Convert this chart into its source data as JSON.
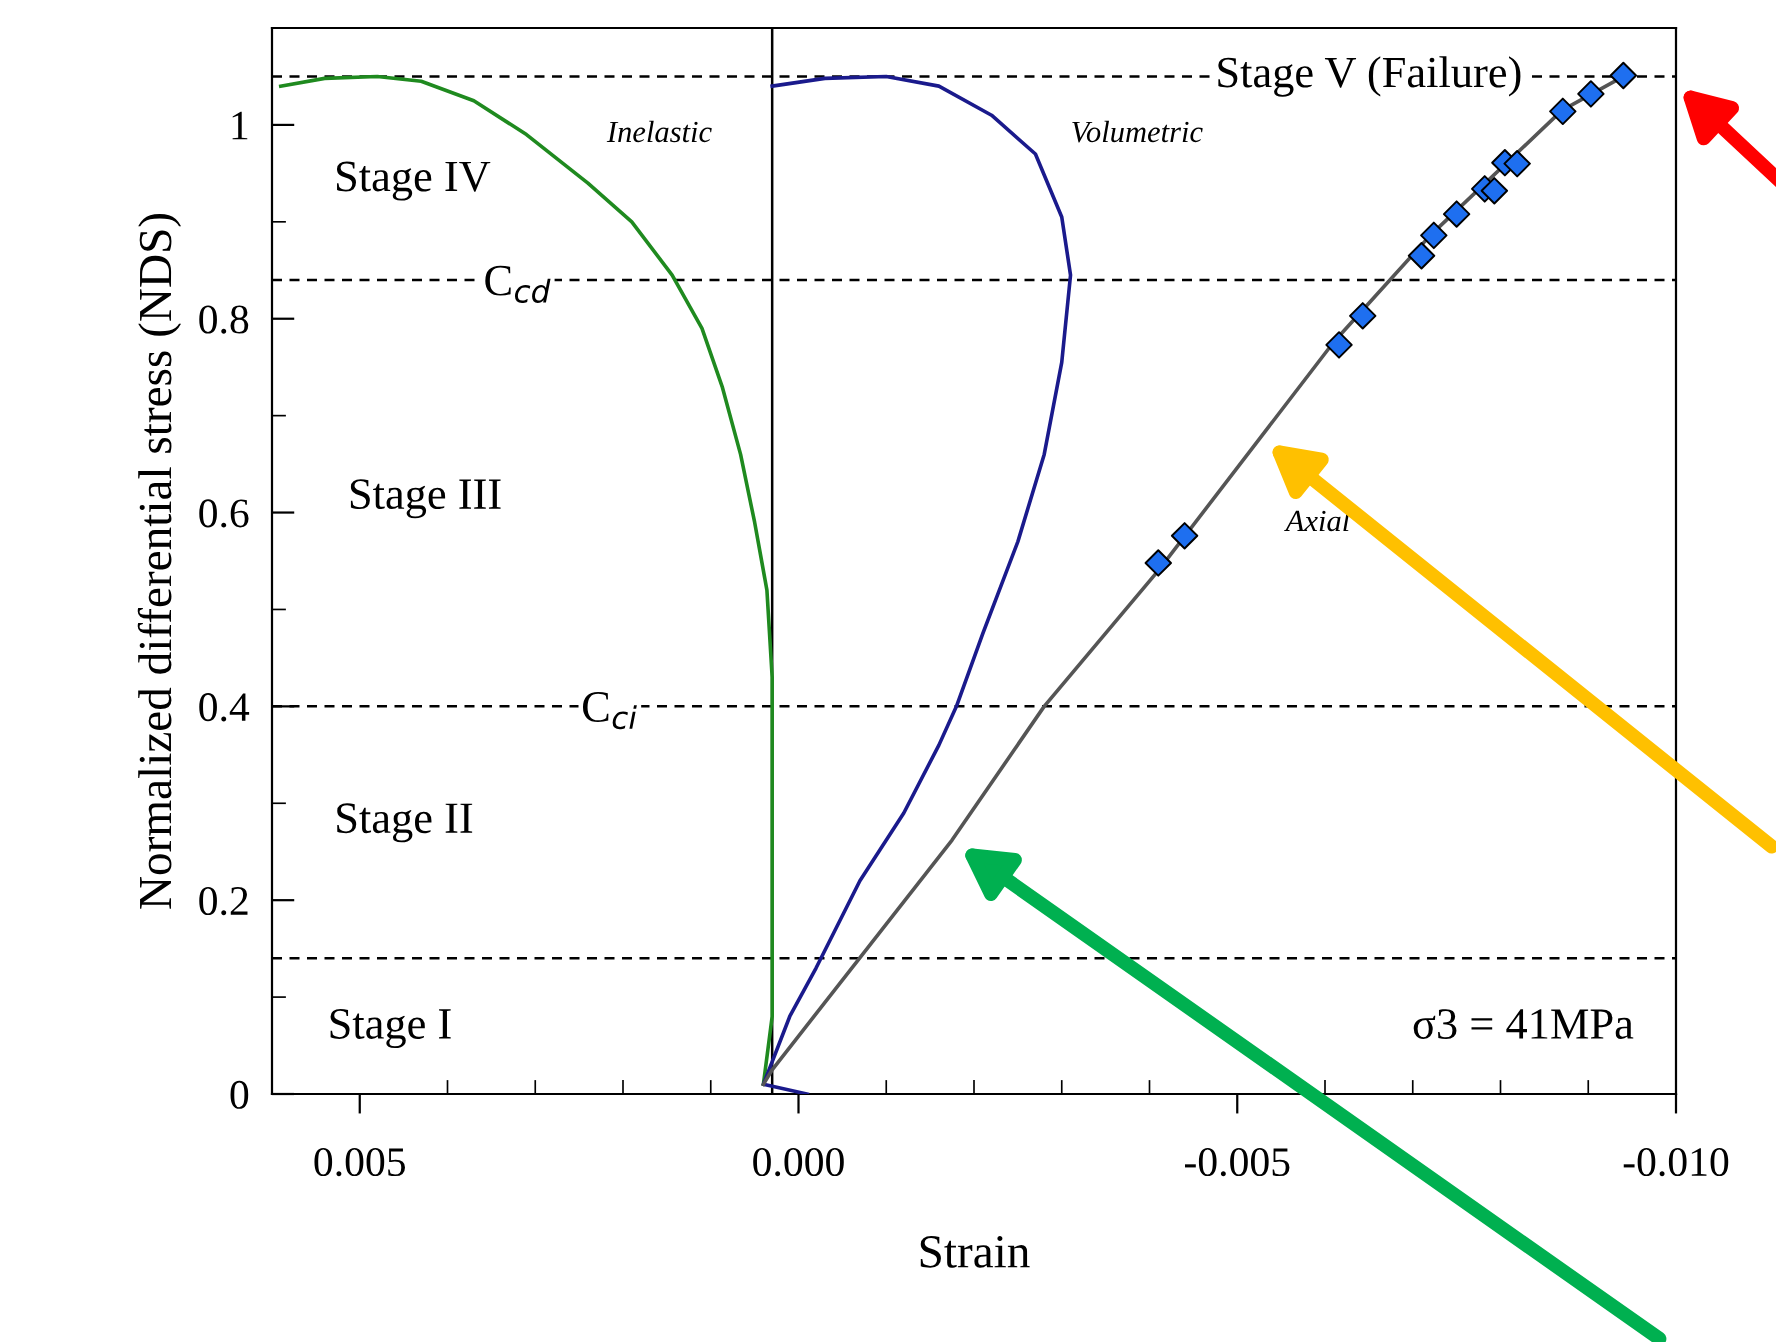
{
  "chart_data": {
    "type": "line",
    "xlabel": "Strain",
    "ylabel": "Normalized differential stress (NDS)",
    "xlim": [
      0.006,
      -0.01
    ],
    "xticks": [
      {
        "value": 0.006,
        "label": null
      },
      0.005,
      {
        "value": 0.004,
        "label": null
      },
      {
        "value": 0.003,
        "label": null
      },
      {
        "value": 0.002,
        "label": null
      },
      {
        "value": 0.001,
        "label": null
      },
      {
        "value": 0.0,
        "label": "0.000"
      },
      {
        "value": -0.001,
        "label": null
      },
      {
        "value": -0.002,
        "label": null
      },
      {
        "value": -0.003,
        "label": null
      },
      {
        "value": -0.004,
        "label": null
      },
      {
        "value": -0.005,
        "label": "-0.005"
      },
      {
        "value": -0.006,
        "label": null
      },
      {
        "value": -0.007,
        "label": null
      },
      {
        "value": -0.008,
        "label": null
      },
      {
        "value": -0.009,
        "label": null
      },
      {
        "value": -0.01,
        "label": "-0.010"
      }
    ],
    "ylim": [
      0,
      1.1
    ],
    "yticks": [
      0,
      {
        "value": 0.1,
        "label": null
      },
      0.2,
      {
        "value": 0.3,
        "label": null
      },
      0.4,
      {
        "value": 0.5,
        "label": null
      },
      0.6,
      {
        "value": 0.7,
        "label": null
      },
      0.8,
      {
        "value": 0.9,
        "label": null
      },
      1,
      {
        "value": 1.1,
        "label": null
      }
    ],
    "grid": false,
    "legend": false,
    "series": [
      {
        "color": "#1f8a1f",
        "x": [
          0.0004,
          0.0003,
          0.0003,
          0.0003,
          0.0003,
          0.00036,
          0.0005,
          0.00066,
          0.00087,
          0.0011,
          0.00144,
          0.0019,
          0.0024,
          0.0031,
          0.0037,
          0.0043,
          0.0048,
          0.0054,
          0.0059
        ],
        "values": [
          0.01,
          0.08,
          0.14,
          0.33,
          0.43,
          0.52,
          0.59,
          0.66,
          0.73,
          0.79,
          0.845,
          0.9,
          0.94,
          0.99,
          1.025,
          1.045,
          1.05,
          1.048,
          1.04
        ]
      },
      {
        "color": "#1a1a8c",
        "x": [
          -0.0001,
          0.0004,
          0.0001,
          -0.0002,
          -0.0007,
          -0.0012,
          -0.0016,
          -0.0018,
          -0.0021,
          -0.0025,
          -0.0028,
          -0.003,
          -0.0031,
          -0.003,
          -0.0027,
          -0.0022,
          -0.0016,
          -0.001,
          -0.0003,
          0.0003
        ],
        "values": [
          0.0,
          0.01,
          0.08,
          0.13,
          0.22,
          0.29,
          0.36,
          0.4,
          0.475,
          0.57,
          0.66,
          0.755,
          0.845,
          0.905,
          0.97,
          1.01,
          1.04,
          1.05,
          1.048,
          1.04
        ]
      },
      {
        "color": "#555555",
        "x": [
          0.0004,
          0.0003,
          -0.00175,
          -0.0028,
          -0.0041,
          -0.0061,
          -0.0072,
          -0.0087,
          -0.0094
        ],
        "values": [
          0.01,
          0.025,
          0.262,
          0.4,
          0.54,
          0.776,
          0.886,
          1.015,
          1.05
        ]
      },
      {
        "type": "scatter",
        "color": "#1e6ff0",
        "marker": "diamond",
        "x": [
          -0.0041,
          -0.0044,
          -0.00616,
          -0.00643,
          -0.0071,
          -0.00724,
          -0.0075,
          -0.00782,
          -0.00793,
          -0.00805,
          -0.00819,
          -0.00871,
          -0.00903,
          -0.0094
        ],
        "values": [
          0.548,
          0.576,
          0.773,
          0.803,
          0.865,
          0.886,
          0.908,
          0.934,
          0.932,
          0.961,
          0.96,
          1.014,
          1.032,
          1.051
        ]
      }
    ],
    "ref_lines": [
      {
        "axis": "x",
        "value": 0.0003,
        "color": "#000000",
        "line_style": "solid"
      },
      {
        "axis": "y",
        "value": 0.14,
        "color": "#000000",
        "line_style": "dashed"
      },
      {
        "axis": "y",
        "value": 0.4,
        "color": "#000000",
        "line_style": "dashed"
      },
      {
        "axis": "y",
        "value": 0.84,
        "color": "#000000",
        "line_style": "dashed"
      },
      {
        "axis": "y",
        "value": 1.05,
        "color": "#000000",
        "line_style": "dashed"
      }
    ],
    "annotations": [
      "Stage I",
      "Stage II",
      "Stage III",
      "Stage IV",
      {
        "text": "Stage V (Failure)",
        "x": -0.0065,
        "y": 1.05
      },
      {
        "text": "C$_{cd}$",
        "x": 0.0032,
        "y": 0.835
      },
      {
        "text": "C$_{ci}$",
        "x": 0.00215,
        "y": 0.395
      },
      "Inelastic",
      "Volumetric",
      "Axial",
      "σ3 = 41MPa"
    ]
  }
}
